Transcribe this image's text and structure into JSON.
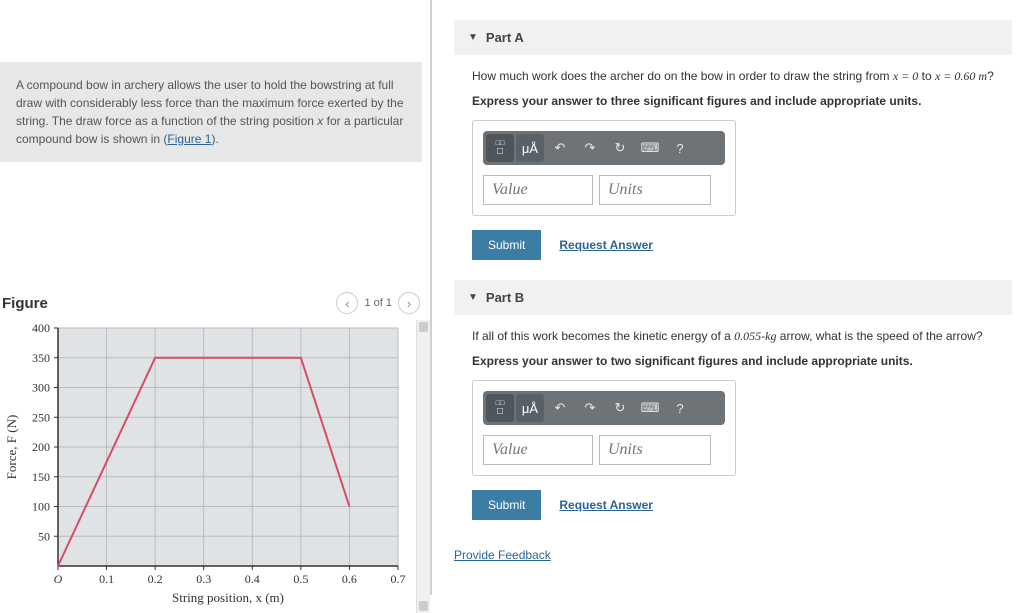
{
  "problem": {
    "text_pre": "A compound bow in archery allows the user to hold the bowstring at full draw with considerably less force than the maximum force exerted by the string. The draw force as a function of the string position ",
    "var": "x",
    "text_mid": " for a particular compound bow is shown in (",
    "figure_link": "Figure 1",
    "text_post": ")."
  },
  "figure": {
    "title": "Figure",
    "counter": "1 of 1",
    "chart": {
      "type": "line",
      "x_label": "String position, x (m)",
      "y_label": "Force, F (N)",
      "xlim": [
        0,
        0.7
      ],
      "ylim": [
        0,
        400
      ],
      "xtick_step": 0.1,
      "ytick_step": 50,
      "x_ticks": [
        "O",
        "0.1",
        "0.2",
        "0.3",
        "0.4",
        "0.5",
        "0.6",
        "0.7"
      ],
      "y_ticks": [
        50,
        100,
        150,
        200,
        250,
        300,
        350,
        400
      ],
      "points": [
        [
          0,
          0
        ],
        [
          0.2,
          350
        ],
        [
          0.5,
          350
        ],
        [
          0.6,
          100
        ]
      ],
      "line_color": "#d94a66",
      "line_width": 2,
      "grid_color": "#b8bcc0",
      "background_color": "#dfe3e6",
      "origin_label": "O",
      "axis_tick_fontsize": 12,
      "label_fontsize": 13
    }
  },
  "partA": {
    "title": "Part A",
    "question_pre": "How much work does the archer do on the bow in order to draw the string from ",
    "q_eq1": "x = 0",
    "q_mid": " to ",
    "q_eq2": "x = 0.60 m",
    "q_end": "?",
    "instruction": "Express your answer to three significant figures and include appropriate units.",
    "value_placeholder": "Value",
    "units_placeholder": "Units",
    "submit": "Submit",
    "request": "Request Answer"
  },
  "partB": {
    "title": "Part B",
    "question_pre": "If all of this work becomes the kinetic energy of a ",
    "mass": "0.055-kg",
    "question_post": " arrow, what is the speed of the arrow?",
    "instruction": "Express your answer to two significant figures and include appropriate units.",
    "value_placeholder": "Value",
    "units_placeholder": "Units",
    "submit": "Submit",
    "request": "Request Answer"
  },
  "feedback_link": "Provide Feedback",
  "toolbar": {
    "template_icon": "□",
    "units_icon": "μÅ",
    "undo": "↶",
    "redo": "↷",
    "reset": "↻",
    "keyboard": "⌨",
    "help": "?"
  },
  "colors": {
    "part_header_bg": "#f0f1f2",
    "submit_bg": "#3b7da3",
    "link": "#2a6496",
    "toolbar_bg": "#6d7377"
  }
}
